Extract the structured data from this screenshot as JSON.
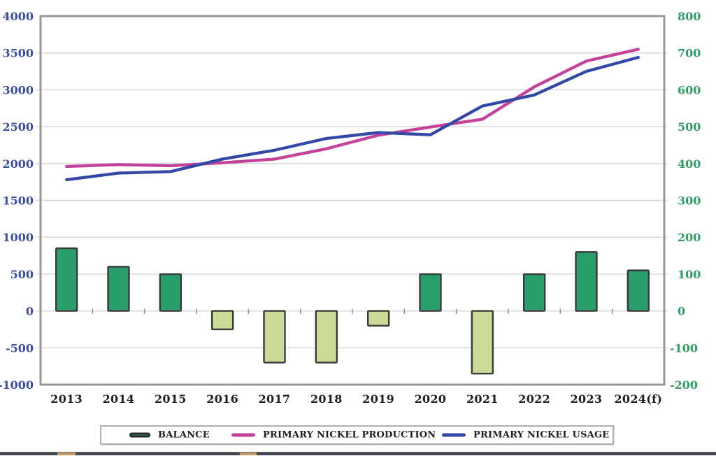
{
  "chart_data": {
    "type": "combo (bar + dual-axis line)",
    "categories": [
      "2013",
      "2014",
      "2015",
      "2016",
      "2017",
      "2018",
      "2019",
      "2020",
      "2021",
      "2022",
      "2023",
      "2024(f)"
    ],
    "series": [
      {
        "name": "BALANCE",
        "type": "bar",
        "axis": "right",
        "color_positive": "#2a9e6a",
        "color_negative": "#c9db96",
        "border_color": "#3a3a3a",
        "values": [
          170,
          120,
          100,
          -50,
          -140,
          -140,
          -40,
          100,
          -170,
          100,
          160,
          110
        ]
      },
      {
        "name": "PRIMARY NICKEL PRODUCTION",
        "type": "line",
        "axis": "left",
        "color": "#c4419c",
        "values": [
          1960,
          1985,
          1970,
          2010,
          2060,
          2200,
          2385,
          2495,
          2600,
          3040,
          3390,
          3550
        ]
      },
      {
        "name": "PRIMARY NICKEL USAGE",
        "type": "line",
        "axis": "left",
        "color": "#3448a8",
        "values": [
          1780,
          1870,
          1890,
          2060,
          2180,
          2340,
          2420,
          2390,
          2780,
          2930,
          3250,
          3440
        ]
      }
    ],
    "left_axis": {
      "min": -1000,
      "max": 4000,
      "step": 500,
      "tick_labels": [
        "4000",
        "3500",
        "3000",
        "2500",
        "2000",
        "1500",
        "1000",
        "500",
        "0",
        "-500",
        "-1000"
      ],
      "tick_values": [
        4000,
        3500,
        3000,
        2500,
        2000,
        1500,
        1000,
        500,
        0,
        -500,
        -1000
      ],
      "label_color": "#3c4ea3"
    },
    "right_axis": {
      "min": -200,
      "max": 800,
      "step": 100,
      "tick_labels": [
        "800",
        "700",
        "600",
        "500",
        "400",
        "300",
        "200",
        "100",
        "0",
        "-100",
        "-200"
      ],
      "tick_values": [
        800,
        700,
        600,
        500,
        400,
        300,
        200,
        100,
        0,
        -100,
        -200
      ],
      "label_color": "#2f9d68"
    },
    "x_axis": {
      "label_color": "#202024"
    },
    "grid": true,
    "grid_color": "#d6d6d6",
    "frame_color": "#979797",
    "legend_position": "bottom"
  },
  "legend": {
    "items": [
      {
        "label": "BALANCE",
        "swatch": "bar",
        "color": "#2a9e6a"
      },
      {
        "label": "PRIMARY NICKEL PRODUCTION",
        "swatch": "line",
        "color": "#c4419c"
      },
      {
        "label": "PRIMARY NICKEL USAGE",
        "swatch": "line",
        "color": "#3448a8"
      }
    ]
  },
  "window": {
    "bottom_edge_color": "#42474f",
    "bottom_edge_accent_color": "#c49a66"
  }
}
